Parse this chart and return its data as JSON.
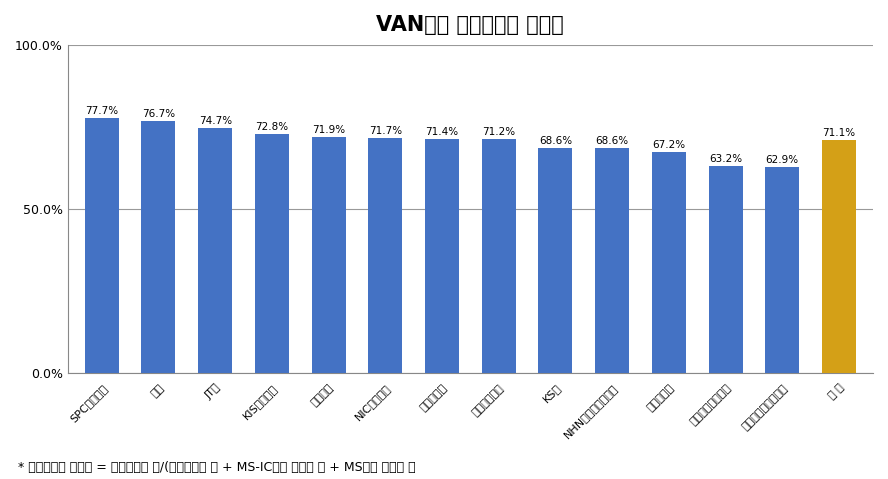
{
  "title": "VAN사별 등록단말기 설치율",
  "categories": [
    "SPC네트웍스",
    "코밵",
    "JT킹",
    "KIS정보통신",
    "스마트로",
    "NIC정보통신",
    "다우데이터",
    "한국중보통신",
    "KS넷",
    "NHN한국사이버결제",
    "금융결제넷",
    "한국신용카드결제",
    "퍼스트데이터코리아",
    "전 체"
  ],
  "values": [
    77.7,
    76.7,
    74.7,
    72.8,
    71.9,
    71.7,
    71.4,
    71.2,
    68.6,
    68.6,
    67.2,
    63.2,
    62.9,
    71.1
  ],
  "bar_colors": [
    "#4472c4",
    "#4472c4",
    "#4472c4",
    "#4472c4",
    "#4472c4",
    "#4472c4",
    "#4472c4",
    "#4472c4",
    "#4472c4",
    "#4472c4",
    "#4472c4",
    "#4472c4",
    "#4472c4",
    "#d4a017"
  ],
  "ylim": [
    0,
    100
  ],
  "yticks": [
    0,
    50,
    100
  ],
  "ytick_labels": [
    "0.0%",
    "50.0%",
    "100.0%"
  ],
  "footnote": "* 등록단말기 설치율 = 등록단말기 수/(등록단말기 수 + MS-IC겨용 단말기 수 + MS전용 단말기 수",
  "bg_color": "#ffffff",
  "grid_color": "#999999",
  "bar_label_fontsize": 7.5,
  "title_fontsize": 15,
  "footnote_fontsize": 9,
  "axis_spine_color": "#888888"
}
